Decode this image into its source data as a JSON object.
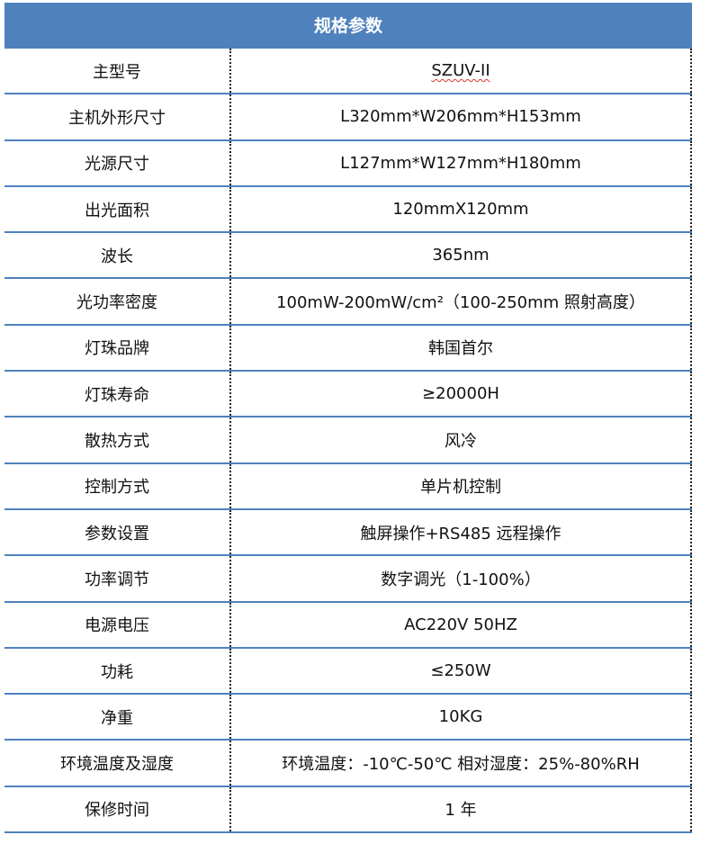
{
  "title": "规格参数",
  "colors": {
    "header_bg": "#4f81bd",
    "border": "#4f81bd"
  },
  "rows": [
    {
      "label": "主型号",
      "value": "SZUV-II"
    },
    {
      "label": "主机外形尺寸",
      "value": "L320mm*W206mm*H153mm"
    },
    {
      "label": "光源尺寸",
      "value": "L127mm*W127mm*H180mm"
    },
    {
      "label": "出光面积",
      "value": "120mmX120mm"
    },
    {
      "label": "波长",
      "value": "365nm"
    },
    {
      "label": "光功率密度",
      "value": "100mW-200mW/cm²（100-250mm 照射高度）"
    },
    {
      "label": "灯珠品牌",
      "value": "韩国首尔"
    },
    {
      "label": "灯珠寿命",
      "value": "≥20000H"
    },
    {
      "label": "散热方式",
      "value": "风冷"
    },
    {
      "label": "控制方式",
      "value": "单片机控制"
    },
    {
      "label": "参数设置",
      "value": "触屏操作+RS485 远程操作"
    },
    {
      "label": "功率调节",
      "value": "数字调光（1-100%）"
    },
    {
      "label": "电源电压",
      "value": "AC220V 50HZ"
    },
    {
      "label": "功耗",
      "value": "≤250W"
    },
    {
      "label": "净重",
      "value": "10KG"
    },
    {
      "label": "环境温度及湿度",
      "value": "环境温度：-10℃-50℃  相对湿度：25%-80%RH"
    },
    {
      "label": "保修时间",
      "value": "1 年"
    }
  ]
}
